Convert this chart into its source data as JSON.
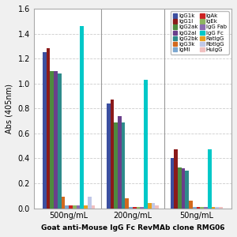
{
  "title": "Goat anti-Mouse IgG Fc RevMAb clone RMG06",
  "ylabel": "Abs (405nm)",
  "groups": [
    "500ng/mL",
    "200ng/mL",
    "50ng/mL"
  ],
  "series": [
    {
      "label": "IgG1k",
      "color": "#3C4FA0",
      "values": [
        1.25,
        0.84,
        0.4
      ]
    },
    {
      "label": "IgG1l",
      "color": "#8B1A1A",
      "values": [
        1.28,
        0.87,
        0.47
      ]
    },
    {
      "label": "IgG2ak",
      "color": "#4E8A3E",
      "values": [
        1.1,
        0.69,
        0.33
      ]
    },
    {
      "label": "IgG2al",
      "color": "#6A3F8B",
      "values": [
        1.1,
        0.74,
        0.32
      ]
    },
    {
      "label": "IgG2bk",
      "color": "#2E8B8B",
      "values": [
        1.08,
        0.69,
        0.3
      ]
    },
    {
      "label": "IgG3k",
      "color": "#D2691E",
      "values": [
        0.09,
        0.08,
        0.06
      ]
    },
    {
      "label": "IgMl",
      "color": "#7BA7D0",
      "values": [
        0.02,
        0.01,
        0.01
      ]
    },
    {
      "label": "IgAk",
      "color": "#CC2222",
      "values": [
        0.02,
        0.01,
        0.01
      ]
    },
    {
      "label": "IgEk",
      "color": "#8DB560",
      "values": [
        0.02,
        0.01,
        0.01
      ]
    },
    {
      "label": "IgG Fab",
      "color": "#8B6BB1",
      "values": [
        0.02,
        0.01,
        0.01
      ]
    },
    {
      "label": "IgG Fc",
      "color": "#00C8C8",
      "values": [
        1.46,
        1.03,
        0.47
      ]
    },
    {
      "label": "RatIgG",
      "color": "#E8A020",
      "values": [
        0.02,
        0.04,
        0.01
      ]
    },
    {
      "label": "RbtIgG",
      "color": "#C0C8E8",
      "values": [
        0.09,
        0.04,
        0.01
      ]
    },
    {
      "label": "HuIgG",
      "color": "#F0C0C0",
      "values": [
        0.02,
        0.02,
        0.01
      ]
    }
  ],
  "ylim": [
    0,
    1.6
  ],
  "yticks": [
    0,
    0.2,
    0.4,
    0.6,
    0.8,
    1.0,
    1.2,
    1.4,
    1.6
  ],
  "background_color": "#F0F0F0",
  "plot_bg": "#FFFFFF",
  "grid_color": "#CCCCCC",
  "legend_order_left": [
    "IgG1k",
    "IgG2ak",
    "IgG2bk",
    "IgMl",
    "IgEk",
    "IgG Fc",
    "RbtIgG"
  ],
  "legend_order_right": [
    "IgG1l",
    "IgG2al",
    "IgG3k",
    "IgAk",
    "IgG Fab",
    "RatIgG",
    "HuIgG"
  ]
}
